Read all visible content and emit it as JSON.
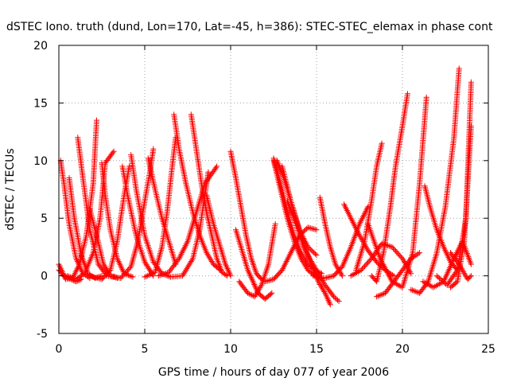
{
  "chart_data": {
    "type": "scatter",
    "title": "dSTEC Iono. truth (dund, Lon=170, Lat=-45, h=386): STEC-STEC_elemax in phase cont",
    "xlabel": "GPS time / hours of day 077 of year 2006",
    "ylabel": "dSTEC  / TECUs",
    "xlim": [
      0,
      25
    ],
    "ylim": [
      -5,
      20
    ],
    "x_ticks": [
      0,
      5,
      10,
      15,
      20,
      25
    ],
    "y_ticks": [
      -5,
      0,
      5,
      10,
      15,
      20
    ],
    "x_tick_labels": [
      "0",
      "5",
      "10",
      "15",
      "20",
      "25"
    ],
    "y_tick_labels": [
      "-5",
      "0",
      "5",
      "10",
      "15",
      "20"
    ],
    "grid": true,
    "marker": "+",
    "color": "#ff0000",
    "series": [
      {
        "x": [
          0.1,
          0.3,
          0.6,
          1.0,
          1.4,
          1.8
        ],
        "y": [
          10.0,
          8.0,
          4.5,
          1.5,
          0.2,
          -0.2
        ]
      },
      {
        "x": [
          0.0,
          0.4,
          0.8,
          1.2,
          1.6,
          2.0,
          2.2
        ],
        "y": [
          1.0,
          -0.3,
          -0.2,
          1.0,
          3.5,
          8.0,
          13.5
        ]
      },
      {
        "x": [
          0.0,
          0.3,
          0.7,
          1.0,
          1.3
        ],
        "y": [
          0.5,
          0.0,
          -0.3,
          -0.5,
          -0.3
        ]
      },
      {
        "x": [
          0.6,
          0.9,
          1.3,
          1.7,
          2.1,
          2.5
        ],
        "y": [
          8.5,
          5.0,
          1.8,
          0.2,
          -0.2,
          0.0
        ]
      },
      {
        "x": [
          1.1,
          1.4,
          1.8,
          2.3,
          2.8,
          3.2
        ],
        "y": [
          12.0,
          8.5,
          4.0,
          1.0,
          0.0,
          -0.1
        ]
      },
      {
        "x": [
          0.5,
          1.0,
          1.5,
          2.0,
          2.4,
          2.7,
          3.2
        ],
        "y": [
          0.0,
          -0.3,
          0.2,
          2.0,
          5.0,
          9.8,
          10.8
        ]
      },
      {
        "x": [
          1.8,
          2.2,
          2.6,
          3.0,
          3.4
        ],
        "y": [
          5.8,
          3.5,
          1.0,
          0.0,
          -0.2
        ]
      },
      {
        "x": [
          2.5,
          2.7,
          3.0,
          3.4,
          3.8,
          4.3
        ],
        "y": [
          9.8,
          7.0,
          4.0,
          1.5,
          0.2,
          -0.1
        ]
      },
      {
        "x": [
          1.8,
          2.5,
          3.0,
          3.4,
          3.8,
          4.1
        ],
        "y": [
          0.0,
          -0.3,
          0.5,
          3.0,
          7.0,
          9.5
        ]
      },
      {
        "x": [
          3.7,
          4.0,
          4.5,
          5.0,
          5.5
        ],
        "y": [
          9.5,
          7.0,
          3.5,
          1.2,
          0.0
        ]
      },
      {
        "x": [
          3.0,
          3.6,
          4.2,
          4.6,
          5.0,
          5.3,
          5.5
        ],
        "y": [
          0.0,
          -0.2,
          0.8,
          3.0,
          6.5,
          9.0,
          11.0
        ]
      },
      {
        "x": [
          4.2,
          4.5,
          5.0,
          5.5,
          6.0,
          6.5
        ],
        "y": [
          10.5,
          7.5,
          3.5,
          1.2,
          0.2,
          -0.1
        ]
      },
      {
        "x": [
          5.0,
          5.6,
          6.0,
          6.3,
          6.6,
          6.8
        ],
        "y": [
          -0.1,
          0.3,
          2.5,
          5.5,
          9.5,
          12.0
        ]
      },
      {
        "x": [
          5.2,
          5.6,
          6.0,
          6.4,
          6.8
        ],
        "y": [
          10.2,
          7.5,
          5.0,
          3.0,
          1.0
        ]
      },
      {
        "x": [
          6.7,
          7.0,
          7.4,
          7.8,
          8.2,
          8.6,
          9.0,
          9.4
        ],
        "y": [
          14.0,
          11.0,
          8.0,
          5.5,
          3.5,
          2.0,
          1.0,
          0.5
        ]
      },
      {
        "x": [
          5.8,
          6.4,
          7.0,
          7.5,
          8.0,
          8.5,
          9.2
        ],
        "y": [
          0.0,
          0.3,
          1.5,
          3.0,
          5.5,
          8.0,
          9.5
        ]
      },
      {
        "x": [
          7.7,
          8.0,
          8.3,
          8.6,
          8.9,
          9.2,
          9.5,
          9.8
        ],
        "y": [
          14.0,
          11.0,
          8.0,
          5.5,
          3.5,
          1.5,
          0.3,
          0.0
        ]
      },
      {
        "x": [
          8.6,
          9.0,
          9.4,
          9.7,
          10.0
        ],
        "y": [
          7.0,
          4.5,
          2.5,
          1.0,
          0.0
        ]
      },
      {
        "x": [
          6.5,
          7.2,
          7.8,
          8.2,
          8.5,
          8.7
        ],
        "y": [
          -0.1,
          0.0,
          1.5,
          4.0,
          7.0,
          9.0
        ]
      },
      {
        "x": [
          10.0,
          10.3,
          10.6,
          10.9,
          11.2,
          11.5,
          11.8
        ],
        "y": [
          10.8,
          8.5,
          6.0,
          3.5,
          1.5,
          0.2,
          -0.3
        ]
      },
      {
        "x": [
          10.3,
          10.7,
          11.0,
          11.3,
          11.6,
          12.0,
          12.4
        ],
        "y": [
          4.0,
          2.0,
          0.5,
          -0.5,
          -1.5,
          -2.0,
          -1.5
        ]
      },
      {
        "x": [
          10.5,
          11.0,
          11.4,
          11.8,
          12.2,
          12.6
        ],
        "y": [
          -0.5,
          -1.5,
          -1.8,
          -0.8,
          1.0,
          4.5
        ]
      },
      {
        "x": [
          12.5,
          12.9,
          13.3,
          13.7,
          14.1,
          14.5,
          14.9,
          15.2
        ],
        "y": [
          10.0,
          7.5,
          5.0,
          3.0,
          1.5,
          0.5,
          0.0,
          -0.2
        ]
      },
      {
        "x": [
          12.7,
          13.1,
          13.5,
          13.9,
          14.3,
          14.7,
          15.1,
          15.5,
          15.8
        ],
        "y": [
          10.0,
          8.5,
          6.5,
          4.5,
          2.5,
          1.0,
          -0.5,
          -1.5,
          -2.5
        ]
      },
      {
        "x": [
          12.5,
          12.9,
          13.3,
          13.7,
          14.1,
          14.5,
          14.9,
          15.3
        ],
        "y": [
          10.2,
          8.0,
          5.5,
          3.5,
          2.0,
          1.0,
          0.5,
          0.2
        ]
      },
      {
        "x": [
          13.0,
          13.5,
          14.0,
          14.5,
          15.0
        ],
        "y": [
          9.5,
          6.5,
          4.0,
          2.5,
          1.8
        ]
      },
      {
        "x": [
          13.3,
          13.8,
          14.2,
          14.6,
          15.0,
          15.5,
          16.0,
          16.3
        ],
        "y": [
          6.5,
          4.5,
          2.8,
          1.5,
          0.5,
          -0.8,
          -1.8,
          -2.2
        ]
      },
      {
        "x": [
          12.0,
          12.5,
          13.0,
          13.5,
          14.0,
          14.5,
          15.0
        ],
        "y": [
          -0.5,
          -0.3,
          0.5,
          2.0,
          3.5,
          4.2,
          4.0
        ]
      },
      {
        "x": [
          15.2,
          15.5,
          15.8,
          16.1,
          16.5
        ],
        "y": [
          6.8,
          4.5,
          2.5,
          1.0,
          0.0
        ]
      },
      {
        "x": [
          14.8,
          15.5,
          16.0,
          16.5,
          17.0,
          17.5,
          18.0
        ],
        "y": [
          0.0,
          -0.2,
          0.0,
          0.8,
          2.5,
          4.5,
          6.0
        ]
      },
      {
        "x": [
          16.6,
          17.0,
          17.5,
          18.0,
          18.5,
          19.0,
          19.5
        ],
        "y": [
          6.2,
          5.0,
          3.5,
          2.2,
          1.2,
          0.5,
          0.0
        ]
      },
      {
        "x": [
          17.0,
          17.6,
          18.2,
          18.8,
          19.4,
          20.0,
          20.5
        ],
        "y": [
          0.0,
          0.5,
          1.5,
          2.8,
          2.5,
          1.5,
          0.2
        ]
      },
      {
        "x": [
          18.2,
          18.5,
          18.9,
          19.3,
          19.6,
          20.0,
          20.3
        ],
        "y": [
          0.0,
          -0.5,
          2.0,
          6.0,
          9.5,
          13.0,
          15.8
        ]
      },
      {
        "x": [
          18.5,
          19.0,
          19.5,
          20.0,
          20.5,
          21.0
        ],
        "y": [
          -1.8,
          -1.5,
          -0.5,
          0.5,
          1.5,
          2.0
        ]
      },
      {
        "x": [
          18.0,
          18.7,
          19.4,
          20.0,
          20.6,
          21.0,
          21.4
        ],
        "y": [
          4.5,
          1.5,
          -0.5,
          -1.0,
          2.0,
          8.0,
          15.5
        ]
      },
      {
        "x": [
          17.3,
          17.8,
          18.2,
          18.5,
          18.8
        ],
        "y": [
          0.5,
          3.0,
          6.5,
          9.5,
          11.5
        ]
      },
      {
        "x": [
          21.3,
          21.6,
          22.0,
          22.4,
          22.8,
          23.2
        ],
        "y": [
          7.8,
          6.0,
          4.0,
          2.5,
          1.2,
          0.5
        ]
      },
      {
        "x": [
          20.5,
          21.0,
          21.5,
          22.0,
          22.5,
          23.0,
          23.3
        ],
        "y": [
          -1.2,
          -1.5,
          -0.5,
          2.0,
          6.0,
          12.0,
          18.0
        ]
      },
      {
        "x": [
          21.2,
          21.8,
          22.4,
          23.0,
          23.5,
          24.0
        ],
        "y": [
          -0.5,
          -1.0,
          -0.5,
          1.5,
          3.0,
          1.0
        ]
      },
      {
        "x": [
          22.0,
          22.6,
          23.2,
          23.7,
          24.0
        ],
        "y": [
          0.0,
          -0.8,
          0.5,
          5.0,
          16.8
        ]
      },
      {
        "x": [
          22.8,
          23.2,
          23.6,
          24.0
        ],
        "y": [
          -1.0,
          -0.5,
          3.0,
          13.0
        ]
      },
      {
        "x": [
          22.8,
          23.3,
          23.8,
          24.0
        ],
        "y": [
          2.0,
          1.0,
          -0.3,
          0.0
        ]
      }
    ]
  }
}
